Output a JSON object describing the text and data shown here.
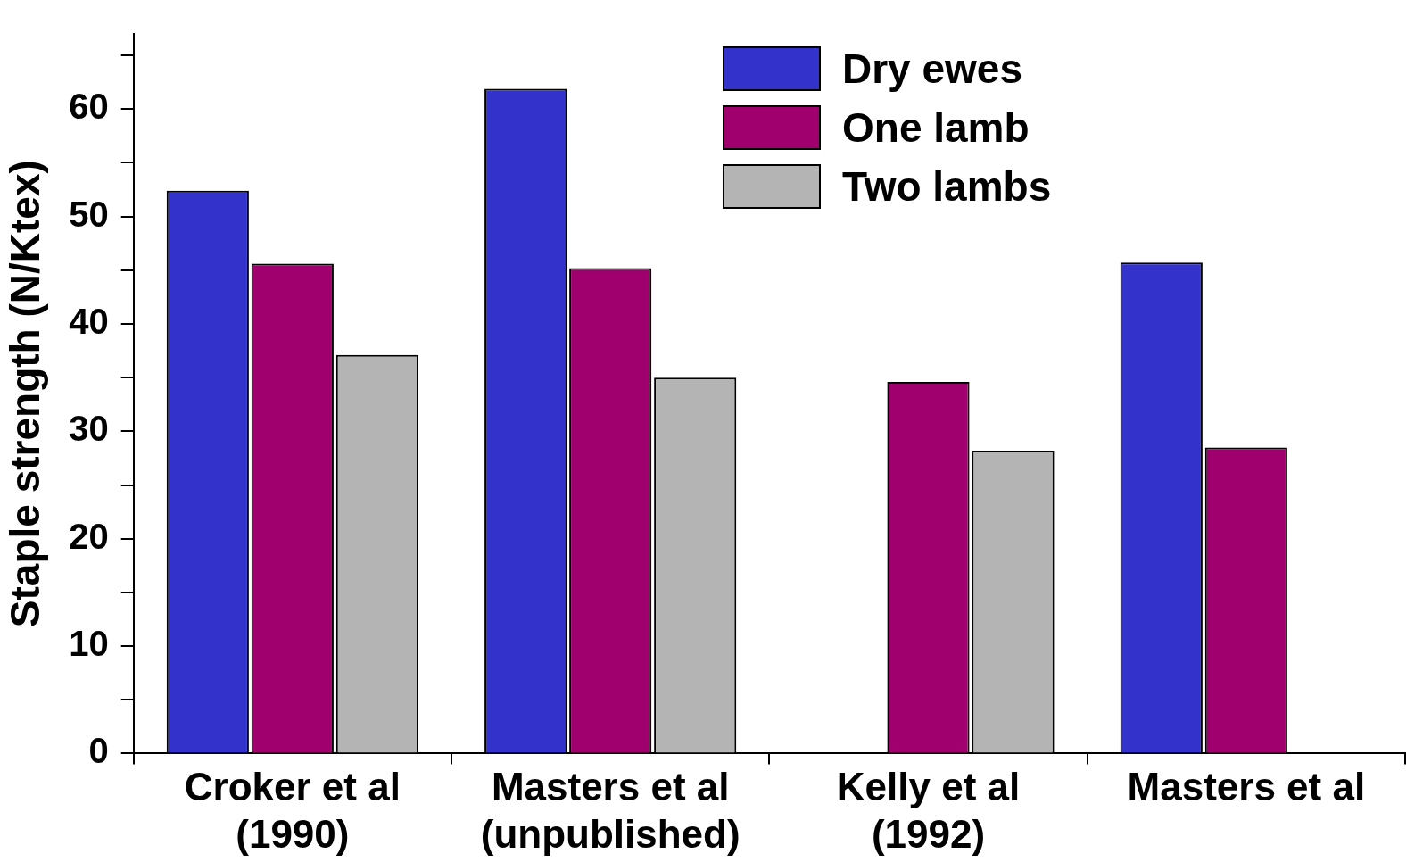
{
  "chart_data": {
    "type": "bar",
    "ylabel": "Staple strength (N/Ktex)",
    "categories": [
      "Croker et al\n(1990)",
      "Masters et al\n(unpublished)",
      "Kelly et al\n(1992)",
      "Masters et al"
    ],
    "series": [
      {
        "name": "Dry ewes",
        "color": "#3333cc",
        "values": [
          52.4,
          61.9,
          null,
          45.7
        ]
      },
      {
        "name": "One lamb",
        "color": "#a0006e",
        "values": [
          45.6,
          45.2,
          34.6,
          28.5
        ]
      },
      {
        "name": "Two lambs",
        "color": "#b4b4b4",
        "values": [
          37.1,
          35.0,
          28.2,
          null
        ]
      }
    ],
    "ylim": [
      0,
      67
    ],
    "yticks": [
      0,
      {
        "value": 5,
        "label": null
      },
      10,
      {
        "value": 15,
        "label": null
      },
      20,
      {
        "value": 25,
        "label": null
      },
      30,
      {
        "value": 35,
        "label": null
      },
      40,
      {
        "value": 45,
        "label": null
      },
      50,
      {
        "value": 55,
        "label": null
      },
      60,
      {
        "value": 65,
        "label": null
      }
    ],
    "grid": false,
    "legend": "top right"
  }
}
